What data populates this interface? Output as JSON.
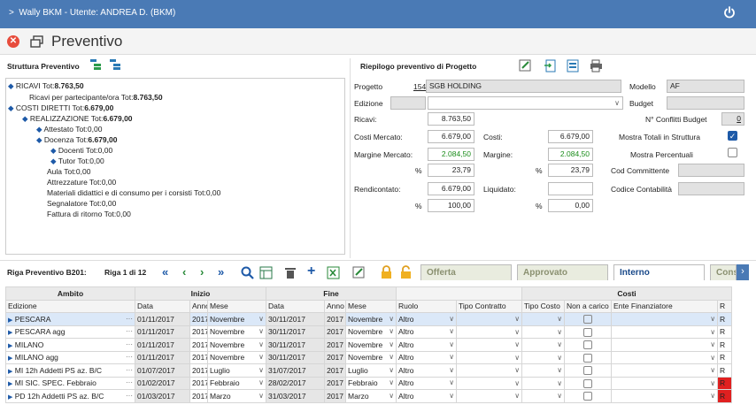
{
  "app": {
    "title": "Wally BKM - Utente: ANDREA D. (BKM)",
    "chevron": ">",
    "icon": "power-icon"
  },
  "page": {
    "title": "Preventivo",
    "close_icon": "close-icon",
    "window_icon": "window-icon"
  },
  "structure": {
    "title": "Struttura Preventivo",
    "tree": [
      {
        "pre": "RICAVI Tot:",
        "val": "8.763,50",
        "bold": true
      },
      {
        "pre": "Ricavi per partecipante/ora Tot:",
        "val": "8.763,50",
        "bold": true
      },
      {
        "pre": "COSTI DIRETTI Tot:",
        "val": "6.679,00",
        "bold": true
      },
      {
        "pre": "REALIZZAZIONE Tot:",
        "val": "6.679,00",
        "bold": true
      },
      {
        "pre": "Attestato Tot:",
        "val": "0,00",
        "bold": false
      },
      {
        "pre": "Docenza Tot:",
        "val": "6.679,00",
        "bold": true
      },
      {
        "pre": "Docenti Tot:",
        "val": "0,00",
        "bold": false
      },
      {
        "pre": "Tutor Tot:",
        "val": "0,00",
        "bold": false
      },
      {
        "pre": "Aula Tot:",
        "val": "0,00",
        "bold": false
      },
      {
        "pre": "Attrezzature Tot:",
        "val": "0,00",
        "bold": false
      },
      {
        "pre": "Materiali didattici e di consumo per i corsisti Tot:",
        "val": "0,00",
        "bold": false
      },
      {
        "pre": "Segnalatore Tot:",
        "val": "0,00",
        "bold": false
      },
      {
        "pre": "Fattura di ritorno Tot:",
        "val": "0,00",
        "bold": false
      }
    ]
  },
  "summary": {
    "title": "Riepilogo preventivo di Progetto",
    "progetto_label": "Progetto",
    "progetto_code": "154",
    "progetto_name": "SGB HOLDING",
    "edizione_label": "Edizione",
    "modello_label": "Modello",
    "modello_value": "AF",
    "budget_label": "Budget",
    "ricavi_label": "Ricavi:",
    "ricavi": "8.763,50",
    "costi_mercato_label": "Costi Mercato:",
    "costi_mercato": "6.679,00",
    "costi_label": "Costi:",
    "costi": "6.679,00",
    "margine_mercato_label": "Margine Mercato:",
    "margine_mercato": "2.084,50",
    "margine_label": "Margine:",
    "margine": "2.084,50",
    "pct": "%",
    "pct1": "23,79",
    "pct2": "23,79",
    "rendicontato_label": "Rendicontato:",
    "rendicontato": "6.679,00",
    "liquidato_label": "Liquidato:",
    "pct3": "100,00",
    "pct4": "0,00",
    "conflitti_label": "N° Conflitti Budget",
    "conflitti": "0",
    "mostra_totali_label": "Mostra Totali in Struttura",
    "mostra_totali": true,
    "mostra_perc_label": "Mostra Percentuali",
    "mostra_perc": false,
    "cod_committente_label": "Cod Committente",
    "codice_contabile_label": "Codice Contabilità"
  },
  "grid": {
    "title": "Riga Preventivo B201:",
    "position": "Riga 1 di 12",
    "tabs": [
      "Offerta",
      "Approvato",
      "Interno",
      "Cons"
    ],
    "groups": {
      "ambito": "Ambito",
      "inizio": "Inizio",
      "fine": "Fine",
      "costi": "Costi"
    },
    "cols": {
      "edizione": "Edizione",
      "data": "Data",
      "anno": "Anno",
      "mese": "Mese",
      "ruolo": "Ruolo",
      "tipo_contratto": "Tipo Contratto",
      "tipo_costo": "Tipo Costo",
      "non_carico": "Non a carico",
      "ente": "Ente Finanziatore",
      "r": "R"
    },
    "ellipsis": "···",
    "rows": [
      {
        "ed": "PESCARA",
        "d1": "01/11/2017",
        "a1": "2017",
        "m1": "Novembre",
        "d2": "30/11/2017",
        "a2": "2017",
        "m2": "Novembre",
        "ruolo": "Altro",
        "r": "R"
      },
      {
        "ed": "PESCARA agg",
        "d1": "01/11/2017",
        "a1": "2017",
        "m1": "Novembre",
        "d2": "30/11/2017",
        "a2": "2017",
        "m2": "Novembre",
        "ruolo": "Altro",
        "r": "R"
      },
      {
        "ed": "MILANO",
        "d1": "01/11/2017",
        "a1": "2017",
        "m1": "Novembre",
        "d2": "30/11/2017",
        "a2": "2017",
        "m2": "Novembre",
        "ruolo": "Altro",
        "r": "R"
      },
      {
        "ed": "MILANO agg",
        "d1": "01/11/2017",
        "a1": "2017",
        "m1": "Novembre",
        "d2": "30/11/2017",
        "a2": "2017",
        "m2": "Novembre",
        "ruolo": "Altro",
        "r": "R"
      },
      {
        "ed": "MI 12h Addetti PS az. B/C",
        "d1": "01/07/2017",
        "a1": "2017",
        "m1": "Luglio",
        "d2": "31/07/2017",
        "a2": "2017",
        "m2": "Luglio",
        "ruolo": "Altro",
        "r": "R"
      },
      {
        "ed": "MI SIC. SPEC. Febbraio",
        "d1": "01/02/2017",
        "a1": "2017",
        "m1": "Febbraio",
        "d2": "28/02/2017",
        "a2": "2017",
        "m2": "Febbraio",
        "ruolo": "Altro",
        "r": "R"
      },
      {
        "ed": "PD 12h Addetti PS az. B/C",
        "d1": "01/03/2017",
        "a1": "2017",
        "m1": "Marzo",
        "d2": "31/03/2017",
        "a2": "2017",
        "m2": "Marzo",
        "ruolo": "Altro",
        "r": "R"
      }
    ]
  },
  "colors": {
    "titlebar": "#4a7ab5",
    "accent": "#1e5aa8",
    "margin_green": "#1a8c1a"
  }
}
